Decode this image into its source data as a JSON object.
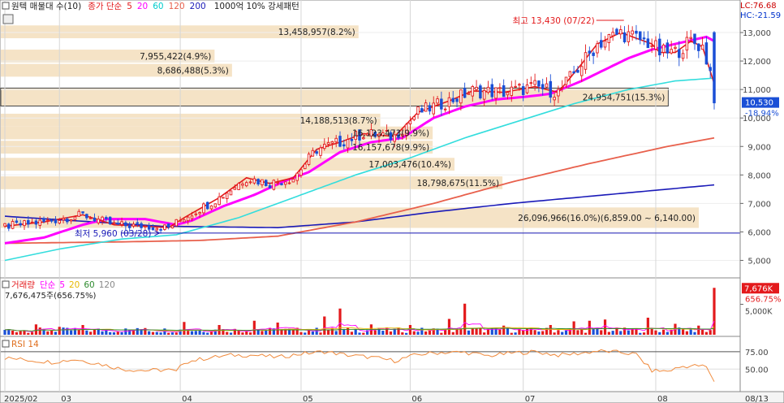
{
  "header": {
    "title": "원텍 매물대 수(10)",
    "ma_label": "종가 단순",
    "ma_periods": [
      {
        "value": "5",
        "color": "#e31a1c"
      },
      {
        "value": "20",
        "color": "#ff00ff"
      },
      {
        "value": "60",
        "color": "#00cccc"
      },
      {
        "value": "120",
        "color": "#e8604c"
      },
      {
        "value": "200",
        "color": "#1a1ab8"
      }
    ],
    "pattern_label": "1000억 10% 강세패턴",
    "lc": "LC:76.68",
    "hc": "HC:-21.59"
  },
  "chart_data": [
    {
      "type": "candlestick",
      "price_ticks": [
        "13,000",
        "12,000",
        "11,000",
        "10,000",
        "9,000",
        "8,000",
        "7,000",
        "6,000",
        "5,000"
      ],
      "ylim": [
        4500,
        13800
      ],
      "months": [
        {
          "label": "2025/02",
          "day": 0
        },
        {
          "label": "03",
          "day": 14
        },
        {
          "label": "04",
          "day": 45
        },
        {
          "label": "05",
          "day": 76
        },
        {
          "label": "06",
          "day": 104
        },
        {
          "label": "07",
          "day": 133
        },
        {
          "label": "08",
          "day": 167
        }
      ],
      "end_date_label": "08/13",
      "last_price": "10,530",
      "last_change": "-18.94%",
      "annotation_high": "최고 13,430 (07/22)",
      "annotation_low": "최저 5,960 (03/28)",
      "volume_profile": [
        {
          "label": "13,458,957(8.2%)",
          "from": 12800,
          "to": 13250
        },
        {
          "label": "7,955,422(4.9%)",
          "from": 11950,
          "to": 12400
        },
        {
          "label": "8,686,488(5.3%)",
          "from": 11450,
          "to": 11900
        },
        {
          "label": "24,954,751(15.3%)",
          "from": 10420,
          "to": 11050
        },
        {
          "label": "14,188,513(8.7%)",
          "from": 9700,
          "to": 10150
        },
        {
          "label": "16,123,473(9.9%)",
          "from": 9250,
          "to": 9700
        },
        {
          "label": "16,157,678(9.9%)",
          "from": 8750,
          "to": 9200
        },
        {
          "label": "17,003,476(10.4%)",
          "from": 8150,
          "to": 8600
        },
        {
          "label": "18,798,675(11.5%)",
          "from": 7500,
          "to": 7950
        },
        {
          "label": "26,096,966(16.0%)(6,859.00 ~ 6,140.00)",
          "from": 6140,
          "to": 6859
        }
      ],
      "ma5_anchors": [
        [
          0,
          6200
        ],
        [
          10,
          6350
        ],
        [
          20,
          6600
        ],
        [
          28,
          6250
        ],
        [
          36,
          6200
        ],
        [
          42,
          6150
        ],
        [
          46,
          6500
        ],
        [
          55,
          7200
        ],
        [
          62,
          7900
        ],
        [
          68,
          7700
        ],
        [
          74,
          7900
        ],
        [
          80,
          8900
        ],
        [
          86,
          9150
        ],
        [
          92,
          9450
        ],
        [
          100,
          9350
        ],
        [
          106,
          10200
        ],
        [
          114,
          10600
        ],
        [
          120,
          10950
        ],
        [
          128,
          10900
        ],
        [
          136,
          11100
        ],
        [
          142,
          10900
        ],
        [
          148,
          11900
        ],
        [
          152,
          12600
        ],
        [
          158,
          13000
        ],
        [
          162,
          12800
        ],
        [
          166,
          12600
        ],
        [
          168,
          12300
        ],
        [
          172,
          12300
        ],
        [
          176,
          12700
        ],
        [
          179,
          12500
        ],
        [
          182,
          11200
        ]
      ],
      "ma20_anchors": [
        [
          0,
          5600
        ],
        [
          10,
          5800
        ],
        [
          20,
          6250
        ],
        [
          26,
          6450
        ],
        [
          36,
          6450
        ],
        [
          44,
          6250
        ],
        [
          48,
          6400
        ],
        [
          56,
          6900
        ],
        [
          64,
          7300
        ],
        [
          72,
          7800
        ],
        [
          78,
          8100
        ],
        [
          86,
          8800
        ],
        [
          94,
          9150
        ],
        [
          102,
          9300
        ],
        [
          110,
          10000
        ],
        [
          118,
          10400
        ],
        [
          126,
          10650
        ],
        [
          134,
          10750
        ],
        [
          140,
          10850
        ],
        [
          148,
          11300
        ],
        [
          154,
          11700
        ],
        [
          160,
          12100
        ],
        [
          166,
          12400
        ],
        [
          172,
          12600
        ],
        [
          180,
          12850
        ],
        [
          182,
          12700
        ]
      ],
      "ma60_anchors": [
        [
          0,
          5000
        ],
        [
          14,
          5400
        ],
        [
          30,
          5750
        ],
        [
          44,
          5900
        ],
        [
          60,
          6500
        ],
        [
          76,
          7300
        ],
        [
          90,
          8000
        ],
        [
          104,
          8600
        ],
        [
          118,
          9300
        ],
        [
          132,
          9900
        ],
        [
          146,
          10500
        ],
        [
          160,
          11000
        ],
        [
          172,
          11300
        ],
        [
          182,
          11400
        ]
      ],
      "ma120_anchors": [
        [
          0,
          5600
        ],
        [
          30,
          5650
        ],
        [
          50,
          5700
        ],
        [
          70,
          5850
        ],
        [
          90,
          6350
        ],
        [
          110,
          7000
        ],
        [
          130,
          7750
        ],
        [
          150,
          8400
        ],
        [
          170,
          9000
        ],
        [
          182,
          9300
        ]
      ],
      "ma200_anchors": [
        [
          0,
          6550
        ],
        [
          40,
          6200
        ],
        [
          70,
          6150
        ],
        [
          90,
          6350
        ],
        [
          110,
          6700
        ],
        [
          130,
          7000
        ],
        [
          150,
          7250
        ],
        [
          170,
          7500
        ],
        [
          182,
          7650
        ]
      ],
      "series": [
        {
          "name": "최고 13,430 (07/22)",
          "price": 13430,
          "day": 153
        },
        {
          "name": "최저 5,960 (03/28)",
          "price": 5960,
          "day": 38
        }
      ]
    },
    {
      "type": "bar",
      "title": "거래량",
      "ma_label": "단순",
      "ma_periods": [
        {
          "value": "5",
          "color": "#ff00ff"
        },
        {
          "value": "20",
          "color": "#e6b800"
        },
        {
          "value": "60",
          "color": "#2e8b2e"
        },
        {
          "value": "120",
          "color": "#888888"
        }
      ],
      "current_value": "7,676,475주(656.75%)",
      "axis_label": "5,000K",
      "last_label": "7,676K",
      "last_change": "656.75%",
      "spikes": [
        [
          8,
          1.7
        ],
        [
          14,
          1.3
        ],
        [
          20,
          1.6
        ],
        [
          36,
          1.1
        ],
        [
          46,
          2.1
        ],
        [
          55,
          1.6
        ],
        [
          64,
          2.3
        ],
        [
          70,
          2.0
        ],
        [
          82,
          3.0
        ],
        [
          86,
          4.3
        ],
        [
          94,
          1.7
        ],
        [
          104,
          1.6
        ],
        [
          114,
          2.6
        ],
        [
          118,
          5.1
        ],
        [
          128,
          1.5
        ],
        [
          140,
          1.6
        ],
        [
          146,
          2.2
        ],
        [
          150,
          2.3
        ],
        [
          154,
          2.5
        ],
        [
          165,
          2.8
        ],
        [
          172,
          1.8
        ],
        [
          178,
          1.5
        ],
        [
          182,
          7.7
        ]
      ],
      "ylim": [
        0,
        8
      ]
    },
    {
      "type": "line",
      "title": "RSI 14",
      "ticks": [
        "75.00",
        "50.00"
      ],
      "ylim": [
        20,
        90
      ],
      "anchors": [
        [
          0,
          66
        ],
        [
          6,
          63
        ],
        [
          12,
          60
        ],
        [
          18,
          64
        ],
        [
          24,
          58
        ],
        [
          30,
          50
        ],
        [
          36,
          48
        ],
        [
          42,
          49
        ],
        [
          44,
          46
        ],
        [
          46,
          60
        ],
        [
          52,
          66
        ],
        [
          58,
          70
        ],
        [
          64,
          70
        ],
        [
          70,
          67
        ],
        [
          76,
          72
        ],
        [
          82,
          75
        ],
        [
          88,
          70
        ],
        [
          94,
          67
        ],
        [
          100,
          62
        ],
        [
          106,
          71
        ],
        [
          112,
          74
        ],
        [
          118,
          74
        ],
        [
          124,
          69
        ],
        [
          130,
          73
        ],
        [
          136,
          75
        ],
        [
          142,
          70
        ],
        [
          148,
          73
        ],
        [
          152,
          76
        ],
        [
          158,
          74
        ],
        [
          162,
          71
        ],
        [
          166,
          48
        ],
        [
          170,
          47
        ],
        [
          174,
          54
        ],
        [
          178,
          55
        ],
        [
          180,
          53
        ],
        [
          182,
          32
        ]
      ]
    }
  ]
}
